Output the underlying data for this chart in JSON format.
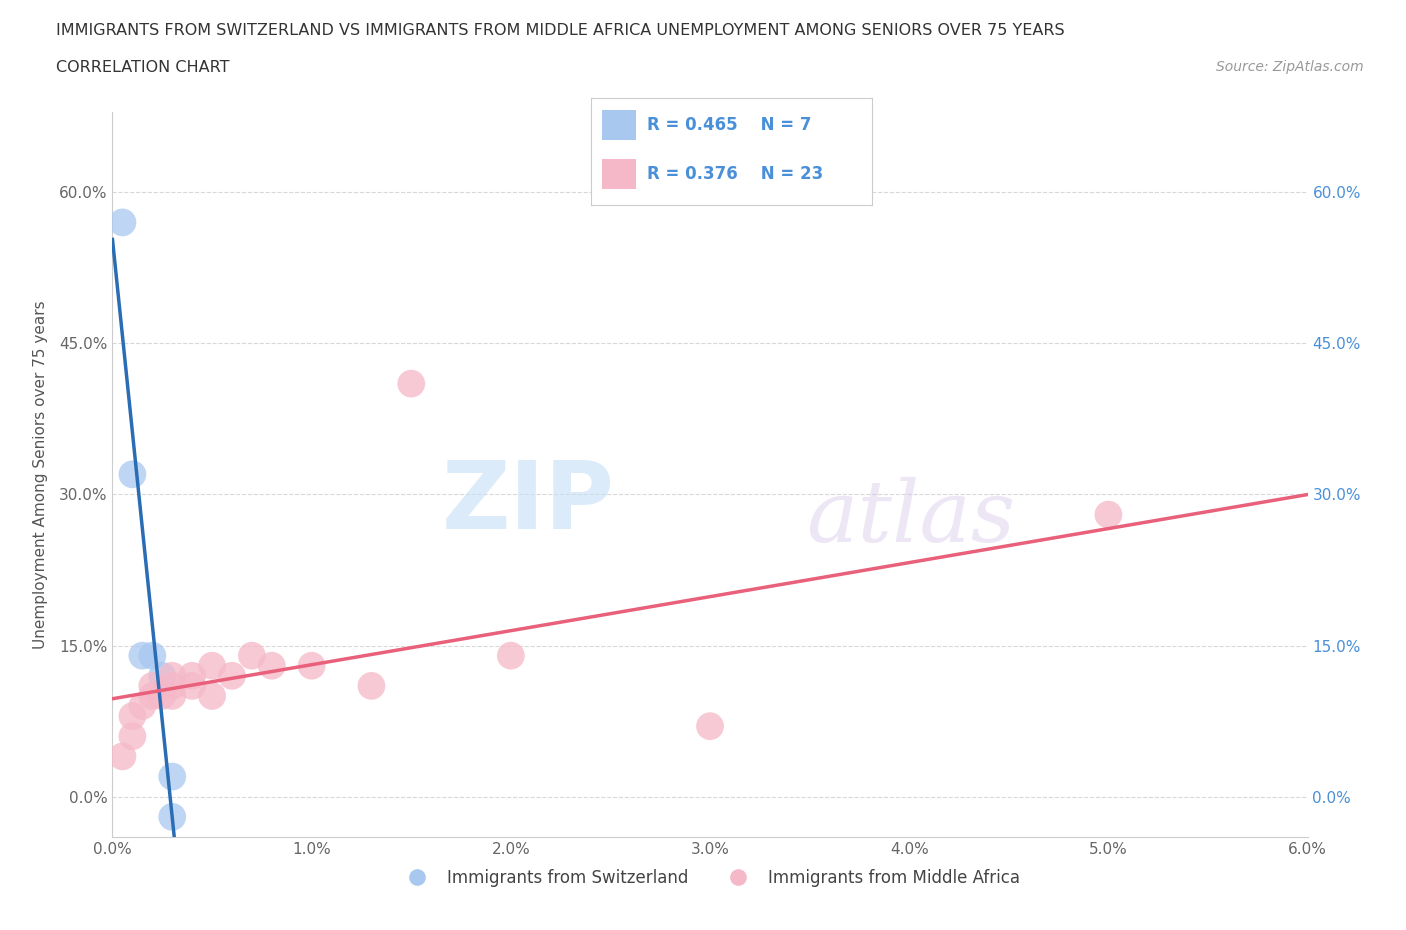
{
  "title_line1": "IMMIGRANTS FROM SWITZERLAND VS IMMIGRANTS FROM MIDDLE AFRICA UNEMPLOYMENT AMONG SENIORS OVER 75 YEARS",
  "title_line2": "CORRELATION CHART",
  "source": "Source: ZipAtlas.com",
  "ylabel": "Unemployment Among Seniors over 75 years",
  "xlim": [
    0.0,
    0.06
  ],
  "ylim": [
    -0.04,
    0.68
  ],
  "xticks": [
    0.0,
    0.01,
    0.02,
    0.03,
    0.04,
    0.05,
    0.06
  ],
  "xticklabels": [
    "0.0%",
    "1.0%",
    "2.0%",
    "3.0%",
    "4.0%",
    "5.0%",
    "6.0%"
  ],
  "yticks": [
    0.0,
    0.15,
    0.3,
    0.45,
    0.6
  ],
  "yticklabels": [
    "0.0%",
    "15.0%",
    "30.0%",
    "45.0%",
    "60.0%"
  ],
  "swiss_color": "#a8c8f0",
  "swiss_line_color": "#2a6db5",
  "middle_africa_color": "#f5b8c8",
  "middle_africa_trendline_color": "#e8607a",
  "R_swiss": 0.465,
  "N_swiss": 7,
  "R_africa": 0.376,
  "N_africa": 23,
  "swiss_x": [
    0.0005,
    0.001,
    0.0015,
    0.002,
    0.0025,
    0.003,
    0.003
  ],
  "swiss_y": [
    0.57,
    0.32,
    0.14,
    0.14,
    0.12,
    0.02,
    -0.02
  ],
  "africa_x": [
    0.0005,
    0.001,
    0.001,
    0.0015,
    0.002,
    0.002,
    0.0025,
    0.003,
    0.003,
    0.003,
    0.004,
    0.004,
    0.005,
    0.005,
    0.006,
    0.007,
    0.008,
    0.01,
    0.013,
    0.015,
    0.02,
    0.03,
    0.05
  ],
  "africa_y": [
    0.04,
    0.06,
    0.08,
    0.09,
    0.1,
    0.11,
    0.1,
    0.1,
    0.11,
    0.12,
    0.11,
    0.12,
    0.1,
    0.13,
    0.12,
    0.14,
    0.13,
    0.13,
    0.11,
    0.41,
    0.14,
    0.07,
    0.28
  ],
  "watermark_zip": "ZIP",
  "watermark_atlas": "atlas",
  "bg_color": "#ffffff",
  "grid_color": "#d8d8d8",
  "legend_box_color": "#f8f8ff"
}
